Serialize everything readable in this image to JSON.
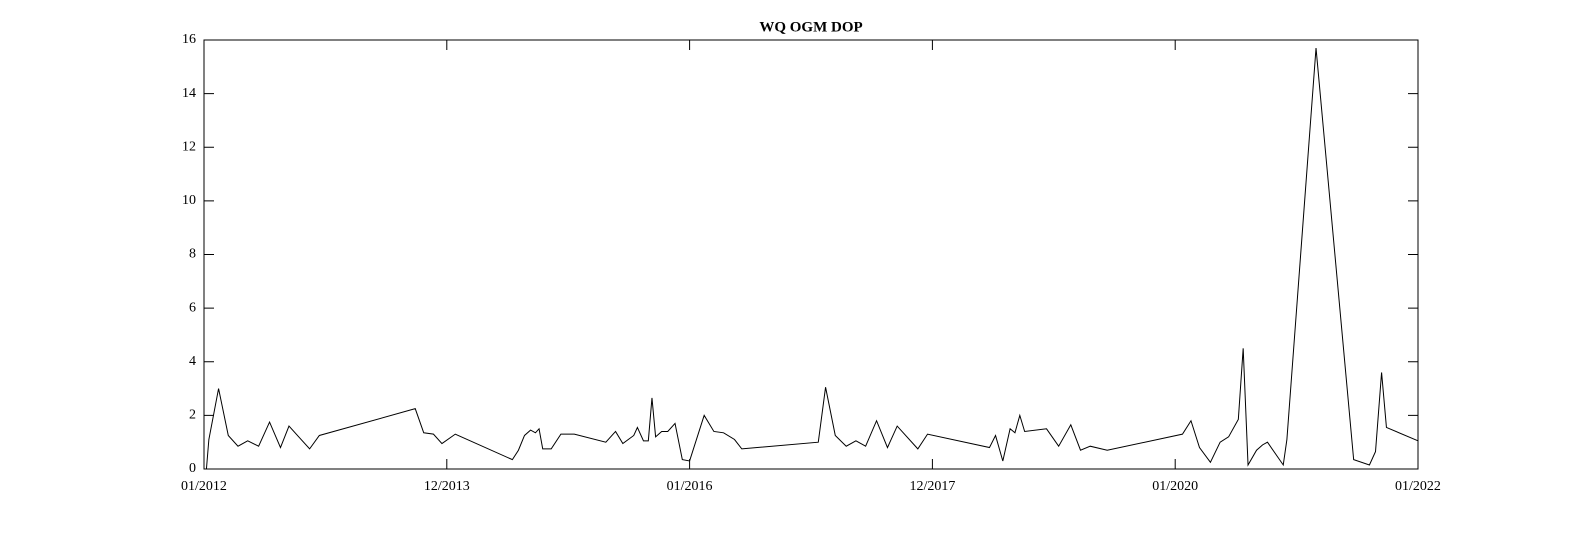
{
  "chart_data": {
    "type": "line",
    "title": "WQ OGM DOP",
    "color": "#000000",
    "x": [
      2012.02,
      2012.04,
      2012.12,
      2012.2,
      2012.28,
      2012.36,
      2012.45,
      2012.54,
      2012.63,
      2012.7,
      2012.78,
      2012.87,
      2012.95,
      2013.74,
      2013.81,
      2013.89,
      2013.96,
      2014.07,
      2014.54,
      2014.59,
      2014.64,
      2014.69,
      2014.73,
      2014.76,
      2014.79,
      2014.86,
      2014.94,
      2015.05,
      2015.31,
      2015.39,
      2015.45,
      2015.54,
      2015.57,
      2015.62,
      2015.66,
      2015.69,
      2015.72,
      2015.77,
      2015.82,
      2015.88,
      2015.94,
      2016.0,
      2016.12,
      2016.2,
      2016.28,
      2016.37,
      2016.43,
      2017.06,
      2017.12,
      2017.2,
      2017.29,
      2017.37,
      2017.45,
      2017.54,
      2017.63,
      2017.71,
      2017.88,
      2017.96,
      2018.47,
      2018.52,
      2018.58,
      2018.64,
      2018.68,
      2018.72,
      2018.76,
      2018.94,
      2019.04,
      2019.14,
      2019.22,
      2019.3,
      2019.44,
      2020.06,
      2020.13,
      2020.2,
      2020.29,
      2020.37,
      2020.44,
      2020.52,
      2020.56,
      2020.6,
      2020.67,
      2020.72,
      2020.76,
      2020.89,
      2020.92,
      2021.16,
      2021.47,
      2021.6,
      2021.65,
      2021.7,
      2021.74,
      2022.0
    ],
    "values": [
      0,
      1.1,
      3.0,
      1.25,
      0.85,
      1.05,
      0.85,
      1.75,
      0.8,
      1.6,
      1.2,
      0.75,
      1.25,
      2.25,
      1.35,
      1.3,
      0.95,
      1.3,
      0.35,
      0.7,
      1.25,
      1.45,
      1.35,
      1.5,
      0.75,
      0.75,
      1.3,
      1.3,
      1.0,
      1.4,
      0.95,
      1.25,
      1.55,
      1.05,
      1.05,
      2.65,
      1.2,
      1.4,
      1.4,
      1.7,
      0.35,
      0.3,
      2.0,
      1.4,
      1.35,
      1.1,
      0.75,
      1.0,
      3.05,
      1.25,
      0.85,
      1.05,
      0.85,
      1.8,
      0.8,
      1.6,
      0.75,
      1.3,
      0.8,
      1.25,
      0.3,
      1.5,
      1.35,
      2.0,
      1.4,
      1.5,
      0.85,
      1.65,
      0.7,
      0.85,
      0.7,
      1.3,
      1.8,
      0.8,
      0.25,
      1.0,
      1.2,
      1.85,
      4.5,
      0.15,
      0.7,
      0.9,
      1.0,
      0.15,
      1.1,
      15.7,
      0.35,
      0.15,
      0.65,
      3.6,
      1.55,
      1.05
    ],
    "xlim": [
      2012,
      2022
    ],
    "xticks": [
      {
        "value": 2012,
        "label": "01/2012"
      },
      {
        "value": 2014,
        "label": "12/2013"
      },
      {
        "value": 2016,
        "label": "01/2016"
      },
      {
        "value": 2018,
        "label": "12/2017"
      },
      {
        "value": 2020,
        "label": "01/2020"
      },
      {
        "value": 2022,
        "label": "01/2022"
      }
    ],
    "ylim": [
      0,
      16
    ],
    "yticks": [
      0,
      2,
      4,
      6,
      8,
      10,
      12,
      14,
      16
    ]
  }
}
